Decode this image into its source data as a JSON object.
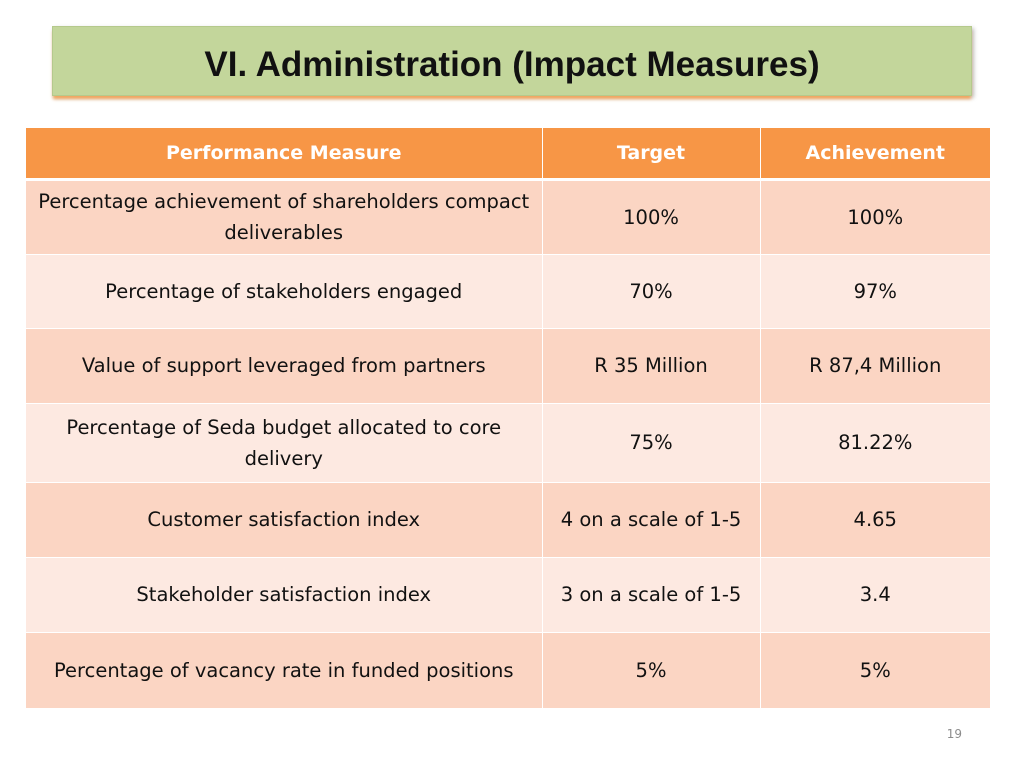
{
  "slide": {
    "title": "VI. Administration (Impact Measures)",
    "page_number": "19"
  },
  "table": {
    "headers": [
      "Performance Measure",
      "Target",
      "Achievement"
    ],
    "rows": [
      [
        "Percentage achievement of shareholders compact deliverables",
        "100%",
        "100%"
      ],
      [
        "Percentage of stakeholders engaged",
        "70%",
        "97%"
      ],
      [
        "Value of support leveraged from partners",
        "R 35 Million",
        "R 87,4 Million"
      ],
      [
        "Percentage of Seda budget allocated to core delivery",
        "75%",
        "81.22%"
      ],
      [
        "Customer satisfaction index",
        "4 on a scale of 1-5",
        "4.65"
      ],
      [
        "Stakeholder satisfaction index",
        "3 on a scale of 1-5",
        "3.4"
      ],
      [
        "Percentage of vacancy rate in funded positions",
        "5%",
        "5%"
      ]
    ]
  },
  "colors": {
    "title_banner": "#c3d69b",
    "header_fill": "#f79646",
    "row_odd": "#fbd5c3",
    "row_even": "#fde9e1"
  }
}
